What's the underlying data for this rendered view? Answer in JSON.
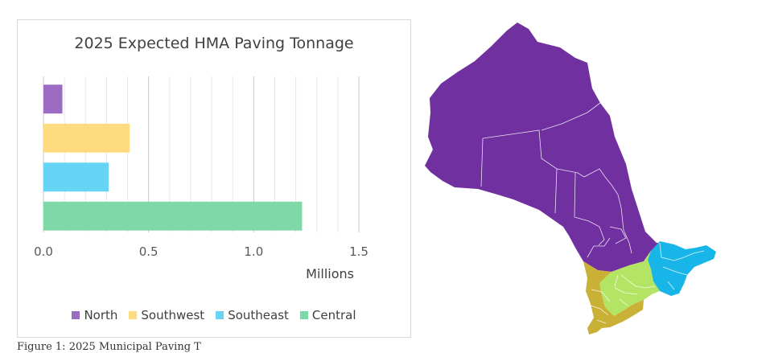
{
  "chart_data": {
    "type": "bar",
    "orientation": "horizontal",
    "title": "2025 Expected HMA Paving Tonnage",
    "xlabel": "Millions",
    "ylabel": "",
    "xlim": [
      0,
      1.5
    ],
    "xticks": [
      "0.0",
      "0.5",
      "1.0",
      "1.5"
    ],
    "grid": true,
    "legend_position": "bottom",
    "series": [
      {
        "name": "North",
        "value": 0.09,
        "color": "#9c6cc2"
      },
      {
        "name": "Southwest",
        "value": 0.41,
        "color": "#ffdb80"
      },
      {
        "name": "Southeast",
        "value": 0.31,
        "color": "#66d4f5"
      },
      {
        "name": "Central",
        "value": 1.23,
        "color": "#7fd9a6"
      }
    ],
    "legend_entries": [
      {
        "label": "North",
        "color": "#9c6cc2"
      },
      {
        "label": "Southwest",
        "color": "#ffdb80"
      },
      {
        "label": "Southeast",
        "color": "#66d4f5"
      },
      {
        "label": "Central",
        "color": "#7fd9a6"
      }
    ]
  },
  "caption": "Figure 1: 2025 Municipal Paving T",
  "map": {
    "colors": {
      "north": "#7030a0",
      "southwest": "#c9b037",
      "central": "#b4e464",
      "southeast": "#18b6e8"
    }
  }
}
